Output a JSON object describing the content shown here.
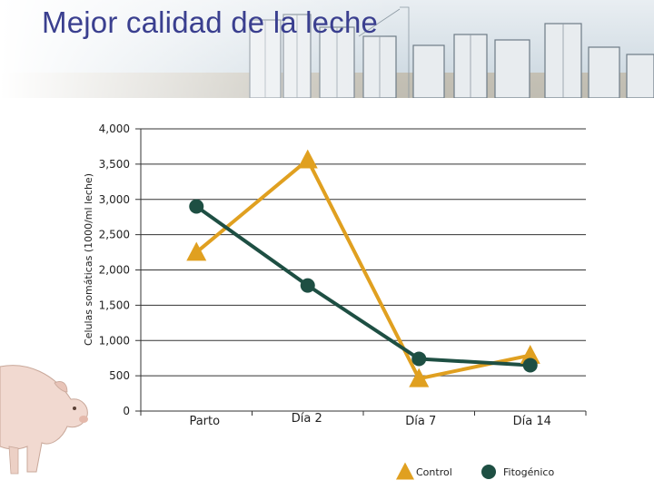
{
  "slide": {
    "title": "Mejor calidad de la leche",
    "banner_image": "farm-silos-sketch",
    "side_image": "pig-photo"
  },
  "colors": {
    "title": "#3a3f8f",
    "control": "#e0a020",
    "fitogenico": "#1e4f43",
    "gridline": "#333333",
    "banner_sky": "#dce6ee"
  },
  "chart_data": {
    "type": "line",
    "title": "",
    "xlabel": "",
    "ylabel": "Celulas somáticas (1000/ml leche)",
    "categories": [
      "Parto",
      "Día 2",
      "Día 7",
      "Día 14"
    ],
    "ylim": [
      0,
      4000
    ],
    "yticks": [
      0,
      500,
      1000,
      1500,
      2000,
      2500,
      3000,
      3500,
      4000
    ],
    "ytick_labels": [
      "0",
      "500",
      "1,000",
      "1,500",
      "2,000",
      "2,500",
      "3,000",
      "3,500",
      "4,000"
    ],
    "grid": true,
    "legend_position": "bottom-right",
    "series": [
      {
        "name": "Control",
        "marker": "triangle",
        "color": "#e0a020",
        "values": [
          2250,
          3560,
          460,
          790
        ]
      },
      {
        "name": "Fitogénico",
        "marker": "circle",
        "color": "#1e4f43",
        "values": [
          2900,
          1780,
          740,
          650
        ]
      }
    ]
  }
}
